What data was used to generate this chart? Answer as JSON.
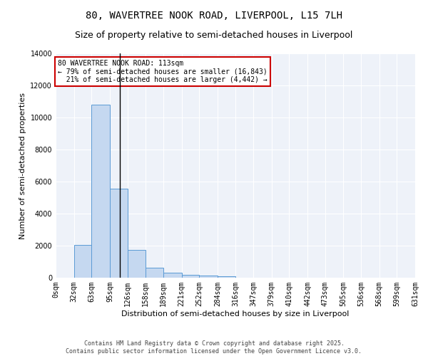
{
  "title_line1": "80, WAVERTREE NOOK ROAD, LIVERPOOL, L15 7LH",
  "title_line2": "Size of property relative to semi-detached houses in Liverpool",
  "xlabel": "Distribution of semi-detached houses by size in Liverpool",
  "ylabel": "Number of semi-detached properties",
  "bar_color": "#c5d8f0",
  "bar_edge_color": "#5b9bd5",
  "highlight_line_color": "#000000",
  "annotation_box_color": "#cc0000",
  "annotation_text": "80 WAVERTREE NOOK ROAD: 113sqm\n← 79% of semi-detached houses are smaller (16,843)\n  21% of semi-detached houses are larger (4,442) →",
  "property_size": 113,
  "bin_edges": [
    0,
    32,
    63,
    95,
    126,
    158,
    189,
    221,
    252,
    284,
    316,
    347,
    379,
    410,
    442,
    473,
    505,
    536,
    568,
    599,
    631
  ],
  "bin_labels": [
    "0sqm",
    "32sqm",
    "63sqm",
    "95sqm",
    "126sqm",
    "158sqm",
    "189sqm",
    "221sqm",
    "252sqm",
    "284sqm",
    "316sqm",
    "347sqm",
    "379sqm",
    "410sqm",
    "442sqm",
    "473sqm",
    "505sqm",
    "536sqm",
    "568sqm",
    "599sqm",
    "631sqm"
  ],
  "counts": [
    0,
    2050,
    10800,
    5550,
    1750,
    620,
    310,
    180,
    120,
    90,
    0,
    0,
    0,
    0,
    0,
    0,
    0,
    0,
    0,
    0
  ],
  "ylim": [
    0,
    14000
  ],
  "yticks": [
    0,
    2000,
    4000,
    6000,
    8000,
    10000,
    12000,
    14000
  ],
  "background_color": "#eef2f9",
  "footer_text": "Contains HM Land Registry data © Crown copyright and database right 2025.\nContains public sector information licensed under the Open Government Licence v3.0.",
  "grid_color": "#ffffff",
  "title_fontsize": 10,
  "subtitle_fontsize": 9,
  "label_fontsize": 8,
  "tick_fontsize": 7,
  "annot_fontsize": 7
}
